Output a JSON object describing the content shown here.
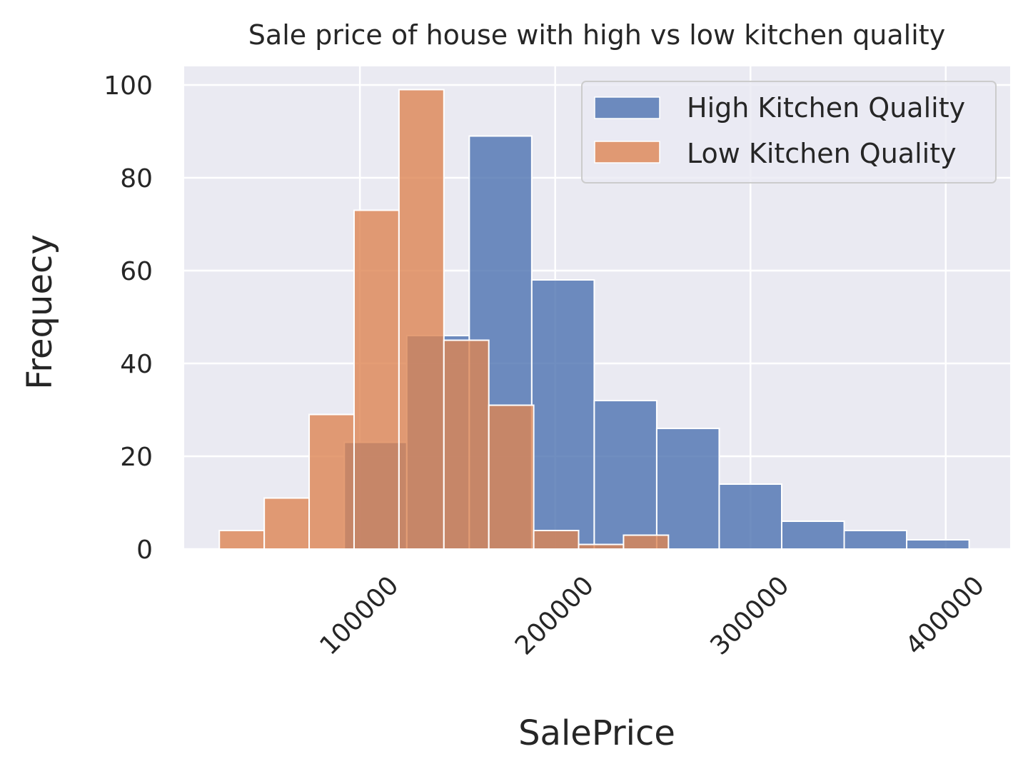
{
  "chart_data": {
    "type": "bar",
    "subtype": "histogram",
    "title": "Sale price of house with high vs low kitchen quality",
    "xlabel": "SalePrice",
    "ylabel": "Frequecy",
    "xlim": [
      10000,
      433000
    ],
    "ylim": [
      0,
      104
    ],
    "x_ticks": [
      100000,
      200000,
      300000,
      400000
    ],
    "x_tick_labels": [
      "100000",
      "200000",
      "300000",
      "400000"
    ],
    "y_ticks": [
      0,
      20,
      40,
      60,
      80,
      100
    ],
    "y_tick_labels": [
      "0",
      "20",
      "40",
      "60",
      "80",
      "100"
    ],
    "grid": true,
    "legend_position": "top-right",
    "series": [
      {
        "name": "High Kitchen Quality",
        "color": "#4c72b0",
        "bin_edges": [
          92000,
          124000,
          156000,
          188000,
          220000,
          252000,
          284000,
          316000,
          348000,
          380000,
          412000
        ],
        "values": [
          23,
          46,
          89,
          58,
          32,
          26,
          14,
          6,
          4,
          2
        ]
      },
      {
        "name": "Low Kitchen Quality",
        "color": "#dd8452",
        "bin_edges": [
          28000,
          51000,
          74000,
          97000,
          120000,
          143000,
          166000,
          189000,
          212000,
          235000,
          258000
        ],
        "values": [
          4,
          11,
          29,
          73,
          99,
          45,
          31,
          4,
          1,
          3
        ]
      }
    ]
  }
}
